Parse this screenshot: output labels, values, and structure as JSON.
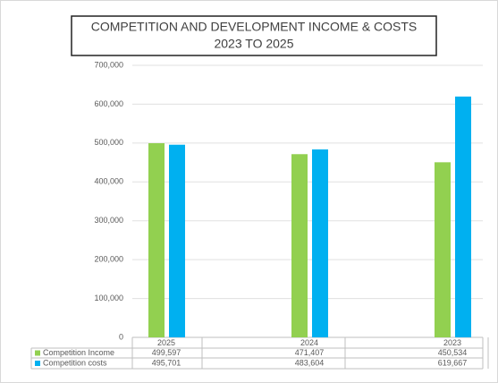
{
  "chart_data": {
    "type": "bar",
    "title": "COMPETITION AND DEVELOPMENT INCOME & COSTS",
    "subtitle": "2023 TO 2025",
    "categories": [
      "2025",
      "2024",
      "2023"
    ],
    "series": [
      {
        "name": "Competition Income",
        "color": "#92d050",
        "values": [
          499597,
          471407,
          450534
        ],
        "value_labels": [
          "499,597",
          "471,407",
          "450,534"
        ]
      },
      {
        "name": "Competition costs",
        "color": "#00b0f0",
        "values": [
          495701,
          483604,
          619667
        ],
        "value_labels": [
          "495,701",
          "483,604",
          "619,667"
        ]
      }
    ],
    "ylim": [
      0,
      700000
    ],
    "yticks": [
      {
        "value": 0,
        "label": "0"
      },
      {
        "value": 100000,
        "label": "100,000"
      },
      {
        "value": 200000,
        "label": "200,000"
      },
      {
        "value": 300000,
        "label": "300,000"
      },
      {
        "value": 400000,
        "label": "400,000"
      },
      {
        "value": 500000,
        "label": "500,000"
      },
      {
        "value": 600000,
        "label": "600,000"
      },
      {
        "value": 700000,
        "label": "700,000"
      }
    ],
    "grid": true
  }
}
